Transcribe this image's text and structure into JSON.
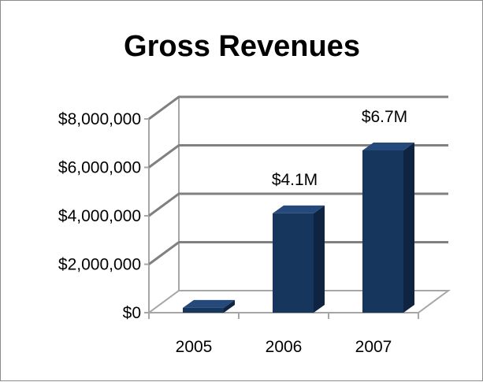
{
  "chart_data": {
    "type": "bar",
    "title": "Gross Revenues",
    "xlabel": "",
    "ylabel": "",
    "categories": [
      "2005",
      "2006",
      "2007"
    ],
    "values": [
      200000,
      4100000,
      6700000
    ],
    "data_labels": [
      "",
      "$4.1M",
      "$6.7M"
    ],
    "y_ticks": [
      0,
      2000000,
      4000000,
      6000000,
      8000000
    ],
    "y_tick_labels": [
      "$0",
      "$2,000,000",
      "$4,000,000",
      "$6,000,000",
      "$8,000,000"
    ],
    "ylim": [
      0,
      8000000
    ],
    "grid": true,
    "legend": "none",
    "style": "3d-column",
    "colors": {
      "bar_front": "#17365d",
      "bar_side": "#0f2440",
      "bar_top": "#24497a",
      "grid": "#808080",
      "wall": "#a6a6a6"
    }
  }
}
